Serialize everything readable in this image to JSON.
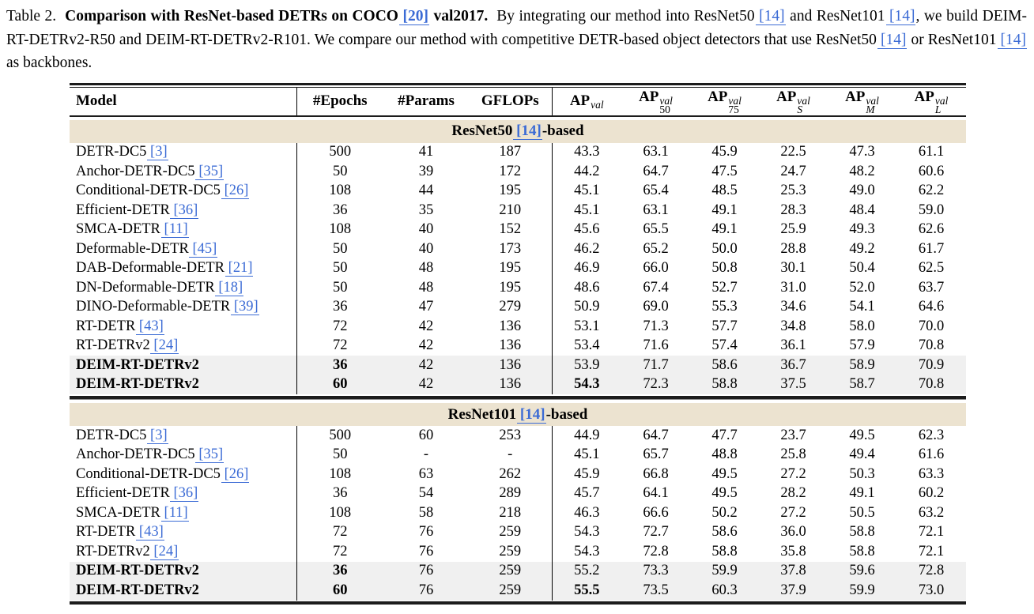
{
  "colors": {
    "link_blue": "#3b6bd5",
    "section_bg": "#ece3d0",
    "highlight_bg": "#f0f0f0",
    "rule_dark": "#1c1c1c"
  },
  "caption": {
    "segments": [
      {
        "text": "Table 2.  ",
        "bold": false,
        "link": false
      },
      {
        "text": "Comparison with ResNet-based DETRs on COCO ",
        "bold": true,
        "link": false
      },
      {
        "text": "[20]",
        "bold": true,
        "link": true
      },
      {
        "text": " val2017.  ",
        "bold": true,
        "link": false
      },
      {
        "text": "By integrating our method into ResNet50 ",
        "bold": false,
        "link": false
      },
      {
        "text": "[14]",
        "bold": false,
        "link": true
      },
      {
        "text": " and ResNet101 ",
        "bold": false,
        "link": false
      },
      {
        "text": "[14]",
        "bold": false,
        "link": true
      },
      {
        "text": ", we build DEIM-RT-DETRv2-R50 and DEIM-RT-DETRv2-R101. We compare our method with competitive DETR-based object detectors that use ResNet50 ",
        "bold": false,
        "link": false
      },
      {
        "text": "[14]",
        "bold": false,
        "link": true
      },
      {
        "text": " or ResNet101 ",
        "bold": false,
        "link": false
      },
      {
        "text": "[14]",
        "bold": false,
        "link": true
      },
      {
        "text": " as backbones.",
        "bold": false,
        "link": false
      }
    ]
  },
  "table": {
    "header": {
      "model": "Model",
      "epochs": "#Epochs",
      "params": "#Params",
      "gflops": "GFLOPs",
      "ap_cols": [
        {
          "base": "AP",
          "sup": "val",
          "sub": ""
        },
        {
          "base": "AP",
          "sup": "val",
          "sub": "50"
        },
        {
          "base": "AP",
          "sup": "val",
          "sub": "75"
        },
        {
          "base": "AP",
          "sup": "val",
          "sub": "S"
        },
        {
          "base": "AP",
          "sup": "val",
          "sub": "M"
        },
        {
          "base": "AP",
          "sup": "val",
          "sub": "L"
        }
      ]
    },
    "sections": [
      {
        "title_prefix": "ResNet50 ",
        "title_ref": "[14]",
        "title_suffix": "-based",
        "rows": [
          {
            "model": "DETR-DC5",
            "ref": "[3]",
            "epochs": "500",
            "params": "41",
            "gflops": "187",
            "ap": [
              "43.3",
              "63.1",
              "45.9",
              "22.5",
              "47.3",
              "61.1"
            ]
          },
          {
            "model": "Anchor-DETR-DC5",
            "ref": "[35]",
            "epochs": "50",
            "params": "39",
            "gflops": "172",
            "ap": [
              "44.2",
              "64.7",
              "47.5",
              "24.7",
              "48.2",
              "60.6"
            ]
          },
          {
            "model": "Conditional-DETR-DC5",
            "ref": "[26]",
            "epochs": "108",
            "params": "44",
            "gflops": "195",
            "ap": [
              "45.1",
              "65.4",
              "48.5",
              "25.3",
              "49.0",
              "62.2"
            ]
          },
          {
            "model": "Efficient-DETR",
            "ref": "[36]",
            "epochs": "36",
            "params": "35",
            "gflops": "210",
            "ap": [
              "45.1",
              "63.1",
              "49.1",
              "28.3",
              "48.4",
              "59.0"
            ]
          },
          {
            "model": "SMCA-DETR",
            "ref": "[11]",
            "epochs": "108",
            "params": "40",
            "gflops": "152",
            "ap": [
              "45.6",
              "65.5",
              "49.1",
              "25.9",
              "49.3",
              "62.6"
            ]
          },
          {
            "model": "Deformable-DETR",
            "ref": "[45]",
            "epochs": "50",
            "params": "40",
            "gflops": "173",
            "ap": [
              "46.2",
              "65.2",
              "50.0",
              "28.8",
              "49.2",
              "61.7"
            ]
          },
          {
            "model": "DAB-Deformable-DETR",
            "ref": "[21]",
            "epochs": "50",
            "params": "48",
            "gflops": "195",
            "ap": [
              "46.9",
              "66.0",
              "50.8",
              "30.1",
              "50.4",
              "62.5"
            ]
          },
          {
            "model": "DN-Deformable-DETR",
            "ref": "[18]",
            "epochs": "50",
            "params": "48",
            "gflops": "195",
            "ap": [
              "48.6",
              "67.4",
              "52.7",
              "31.0",
              "52.0",
              "63.7"
            ]
          },
          {
            "model": "DINO-Deformable-DETR",
            "ref": "[39]",
            "epochs": "36",
            "params": "47",
            "gflops": "279",
            "ap": [
              "50.9",
              "69.0",
              "55.3",
              "34.6",
              "54.1",
              "64.6"
            ]
          },
          {
            "model": "RT-DETR",
            "ref": "[43]",
            "epochs": "72",
            "params": "42",
            "gflops": "136",
            "ap": [
              "53.1",
              "71.3",
              "57.7",
              "34.8",
              "58.0",
              "70.0"
            ]
          },
          {
            "model": "RT-DETRv2",
            "ref": "[24]",
            "epochs": "72",
            "params": "42",
            "gflops": "136",
            "ap": [
              "53.4",
              "71.6",
              "57.4",
              "36.1",
              "57.9",
              "70.8"
            ]
          },
          {
            "model": "DEIM-RT-DETRv2",
            "ref": "",
            "epochs": "36",
            "params": "42",
            "gflops": "136",
            "ap": [
              "53.9",
              "71.7",
              "58.6",
              "36.7",
              "58.9",
              "70.9"
            ],
            "bold_model": true,
            "bold_epochs": true,
            "highlight": true
          },
          {
            "model": "DEIM-RT-DETRv2",
            "ref": "",
            "epochs": "60",
            "params": "42",
            "gflops": "136",
            "ap": [
              "54.3",
              "72.3",
              "58.8",
              "37.5",
              "58.7",
              "70.8"
            ],
            "bold_model": true,
            "bold_epochs": true,
            "highlight": true,
            "ap_bold": [
              0
            ]
          }
        ]
      },
      {
        "title_prefix": "ResNet101 ",
        "title_ref": "[14]",
        "title_suffix": "-based",
        "rows": [
          {
            "model": "DETR-DC5",
            "ref": "[3]",
            "epochs": "500",
            "params": "60",
            "gflops": "253",
            "ap": [
              "44.9",
              "64.7",
              "47.7",
              "23.7",
              "49.5",
              "62.3"
            ]
          },
          {
            "model": "Anchor-DETR-DC5",
            "ref": "[35]",
            "epochs": "50",
            "params": "-",
            "gflops": "-",
            "ap": [
              "45.1",
              "65.7",
              "48.8",
              "25.8",
              "49.4",
              "61.6"
            ]
          },
          {
            "model": "Conditional-DETR-DC5",
            "ref": "[26]",
            "epochs": "108",
            "params": "63",
            "gflops": "262",
            "ap": [
              "45.9",
              "66.8",
              "49.5",
              "27.2",
              "50.3",
              "63.3"
            ]
          },
          {
            "model": "Efficient-DETR",
            "ref": "[36]",
            "epochs": "36",
            "params": "54",
            "gflops": "289",
            "ap": [
              "45.7",
              "64.1",
              "49.5",
              "28.2",
              "49.1",
              "60.2"
            ]
          },
          {
            "model": "SMCA-DETR",
            "ref": "[11]",
            "epochs": "108",
            "params": "58",
            "gflops": "218",
            "ap": [
              "46.3",
              "66.6",
              "50.2",
              "27.2",
              "50.5",
              "63.2"
            ]
          },
          {
            "model": "RT-DETR",
            "ref": "[43]",
            "epochs": "72",
            "params": "76",
            "gflops": "259",
            "ap": [
              "54.3",
              "72.7",
              "58.6",
              "36.0",
              "58.8",
              "72.1"
            ]
          },
          {
            "model": "RT-DETRv2",
            "ref": "[24]",
            "epochs": "72",
            "params": "76",
            "gflops": "259",
            "ap": [
              "54.3",
              "72.8",
              "58.8",
              "35.8",
              "58.8",
              "72.1"
            ]
          },
          {
            "model": "DEIM-RT-DETRv2",
            "ref": "",
            "epochs": "36",
            "params": "76",
            "gflops": "259",
            "ap": [
              "55.2",
              "73.3",
              "59.9",
              "37.8",
              "59.6",
              "72.8"
            ],
            "bold_model": true,
            "bold_epochs": true,
            "highlight": true
          },
          {
            "model": "DEIM-RT-DETRv2",
            "ref": "",
            "epochs": "60",
            "params": "76",
            "gflops": "259",
            "ap": [
              "55.5",
              "73.5",
              "60.3",
              "37.9",
              "59.9",
              "73.0"
            ],
            "bold_model": true,
            "bold_epochs": true,
            "highlight": true,
            "ap_bold": [
              0
            ]
          }
        ]
      }
    ]
  }
}
